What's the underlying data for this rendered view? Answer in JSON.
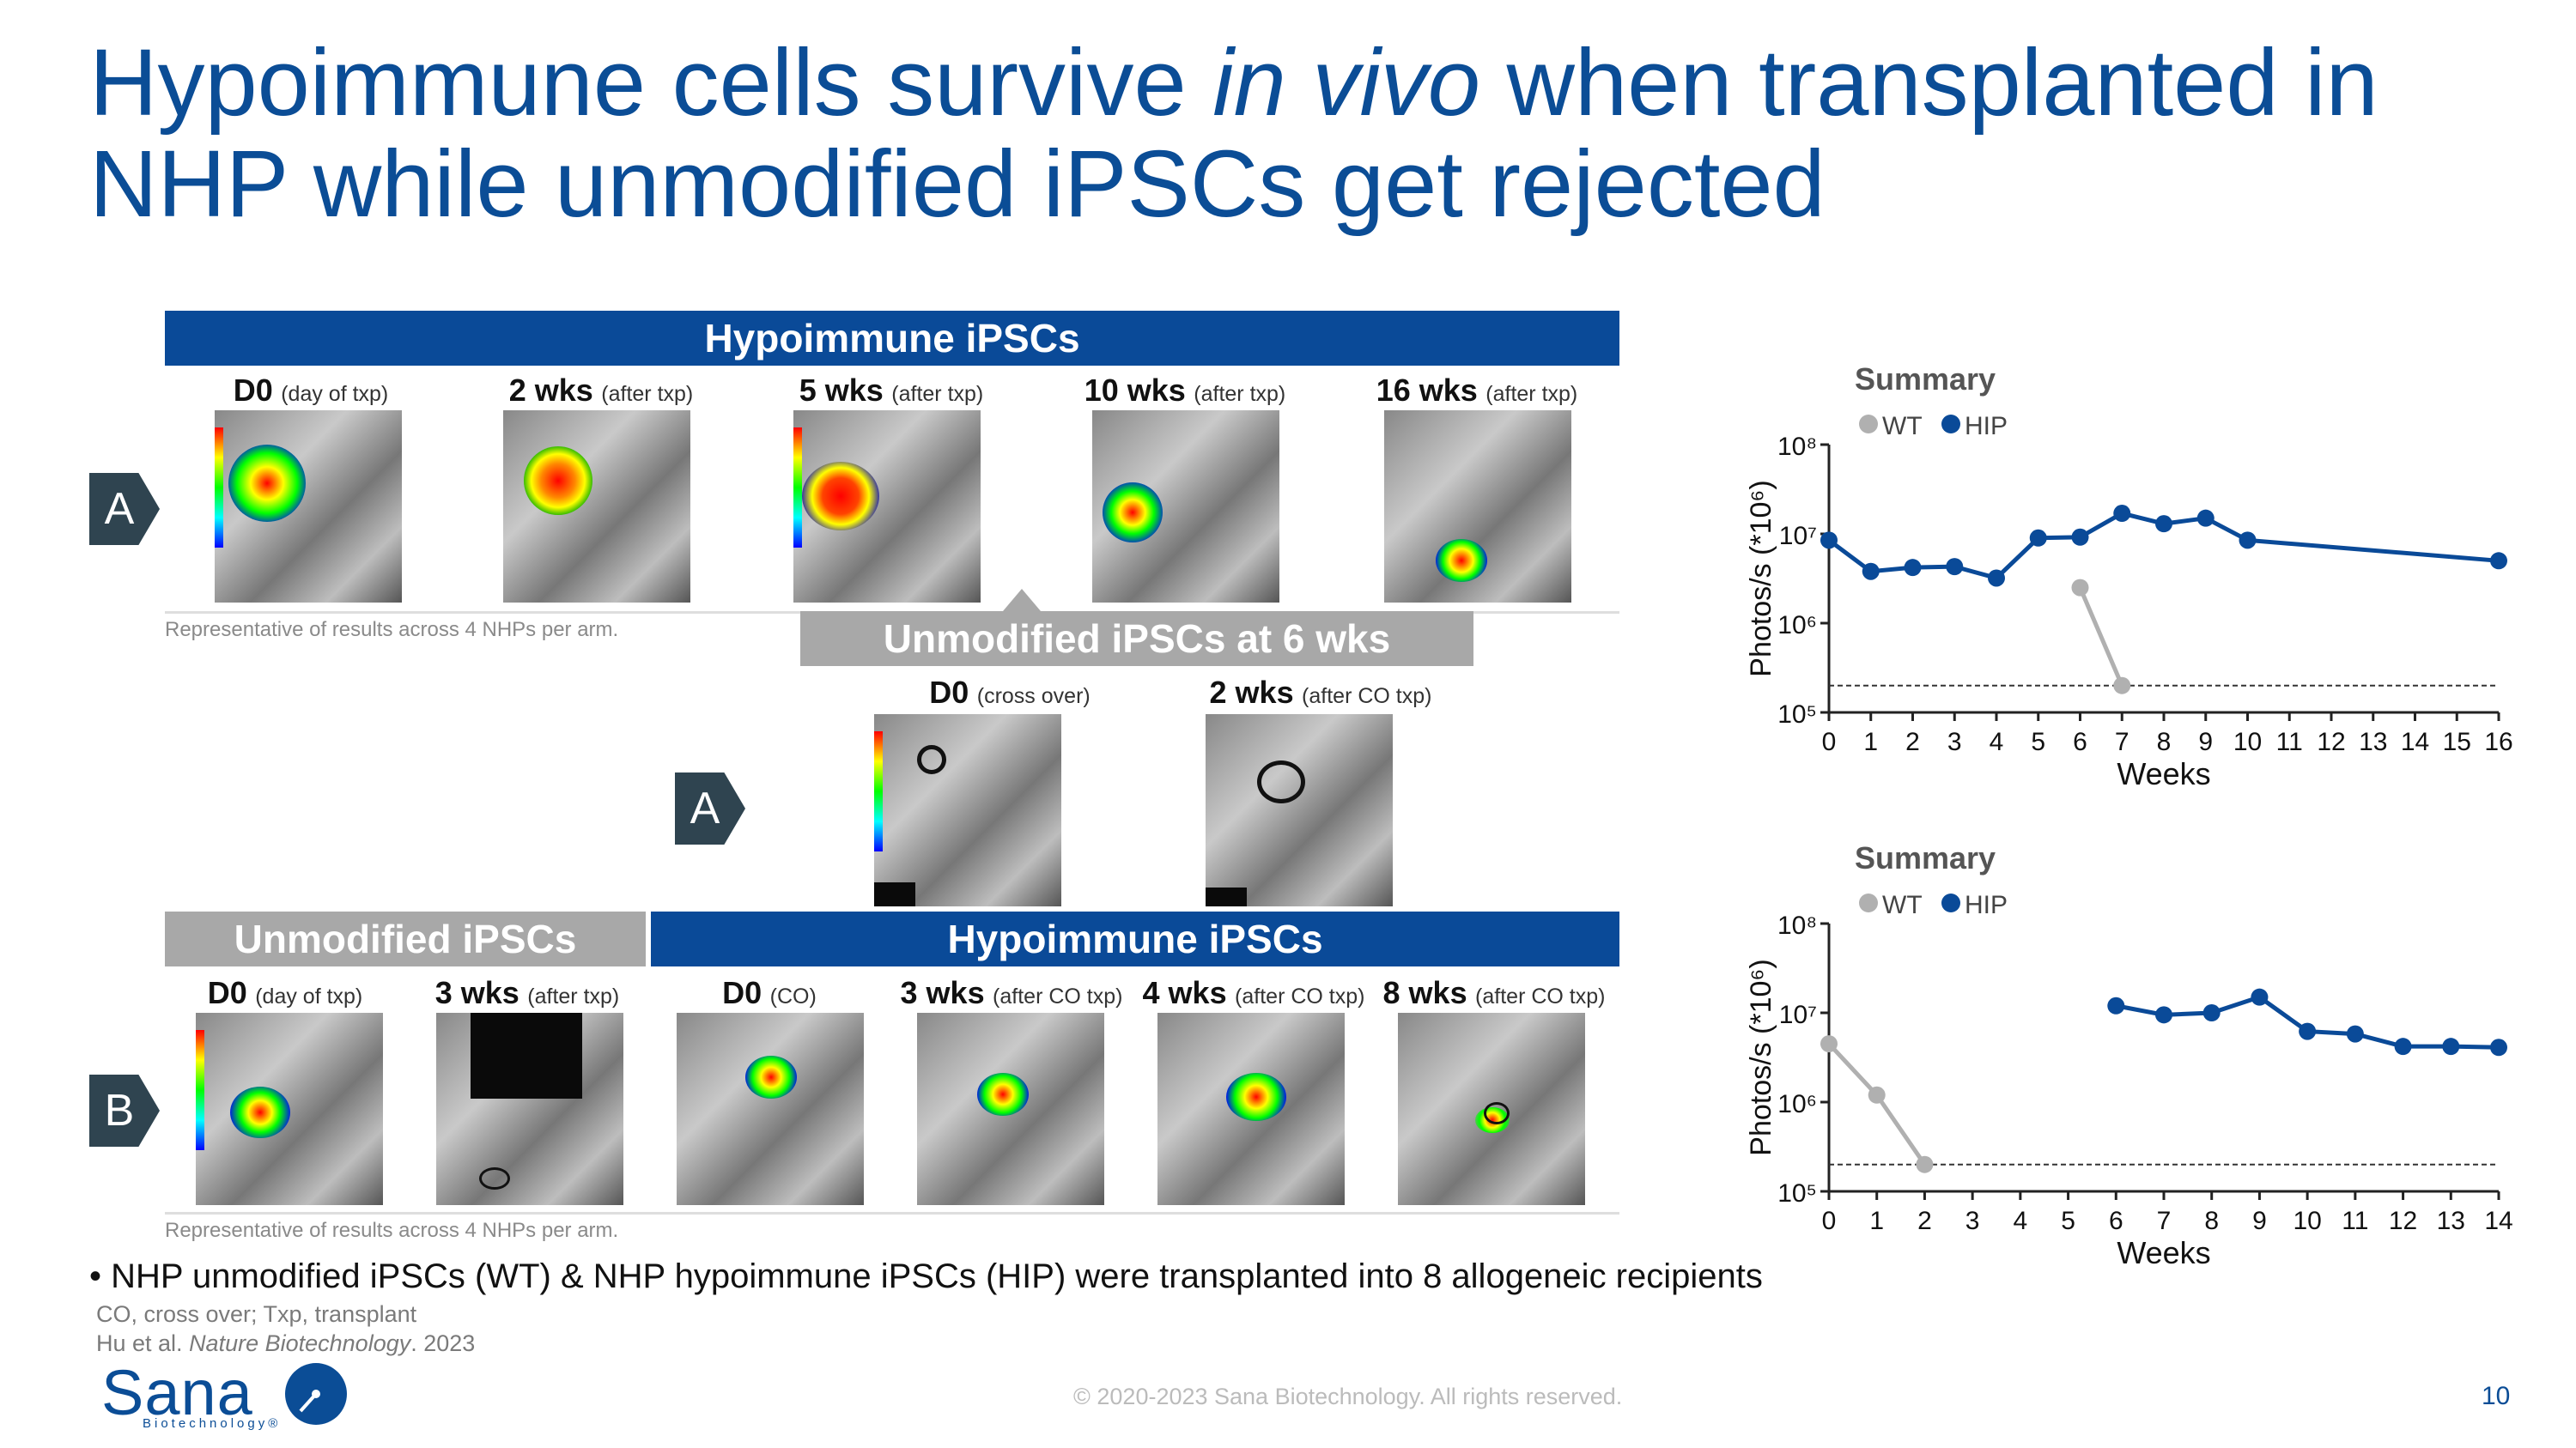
{
  "title": {
    "part1": "Hypoimmune cells survive ",
    "italic": "in vivo",
    "part2": " when transplanted in NHP while unmodified iPSCs get rejected"
  },
  "panelA": {
    "badge": "A",
    "header": "Hypoimmune iPSCs",
    "timepoints": [
      {
        "label": "D0",
        "sub": "(day of txp)"
      },
      {
        "label": "2 wks",
        "sub": "(after txp)"
      },
      {
        "label": "5 wks",
        "sub": "(after txp)"
      },
      {
        "label": "10 wks",
        "sub": "(after txp)"
      },
      {
        "label": "16 wks",
        "sub": "(after txp)"
      }
    ],
    "note": "Representative of results across 4 NHPs per arm."
  },
  "panelA2": {
    "badge": "A",
    "header": "Unmodified iPSCs at 6 wks",
    "timepoints": [
      {
        "label": "D0",
        "sub": "(cross over)"
      },
      {
        "label": "2 wks",
        "sub": "(after CO txp)"
      }
    ]
  },
  "panelB": {
    "badge": "B",
    "header_left": "Unmodified iPSCs",
    "header_right": "Hypoimmune iPSCs",
    "timepoints": [
      {
        "label": "D0",
        "sub": "(day of txp)"
      },
      {
        "label": "3 wks",
        "sub": "(after txp)"
      },
      {
        "label": "D0",
        "sub": "(CO)"
      },
      {
        "label": "3 wks",
        "sub": "(after CO txp)"
      },
      {
        "label": "4 wks",
        "sub": "(after CO txp)"
      },
      {
        "label": "8 wks",
        "sub": "(after CO txp)"
      }
    ],
    "note": "Representative of results across 4 NHPs per arm."
  },
  "chart_data": [
    {
      "type": "line",
      "title": "Summary",
      "xlabel": "Weeks",
      "ylabel": "Photos/s (*10⁶)",
      "yscale": "log",
      "ylim": [
        100000,
        100000000
      ],
      "yticks": [
        "10⁵",
        "10⁶",
        "10⁷",
        "10⁸"
      ],
      "xlim": [
        0,
        16
      ],
      "xticks": [
        "0",
        "1",
        "2",
        "3",
        "4",
        "5",
        "6",
        "7",
        "8",
        "9",
        "10",
        "11",
        "12",
        "13",
        "14",
        "15",
        "16"
      ],
      "threshold": 200000,
      "legend": [
        "WT",
        "HIP"
      ],
      "series": [
        {
          "name": "WT",
          "color": "#b0b0b0",
          "x": [
            6,
            7
          ],
          "values": [
            2500000,
            200000
          ]
        },
        {
          "name": "HIP",
          "color": "#0a4a98",
          "x": [
            0,
            1,
            2,
            3,
            4,
            5,
            6,
            7,
            8,
            9,
            10,
            16
          ],
          "values": [
            8500000,
            3800000,
            4200000,
            4300000,
            3200000,
            9000000,
            9200000,
            17000000,
            13000000,
            15000000,
            8500000,
            5000000
          ]
        }
      ]
    },
    {
      "type": "line",
      "title": "Summary",
      "xlabel": "Weeks",
      "ylabel": "Photos/s (*10⁶)",
      "yscale": "log",
      "ylim": [
        100000,
        100000000
      ],
      "yticks": [
        "10⁵",
        "10⁶",
        "10⁷",
        "10⁸"
      ],
      "xlim": [
        0,
        14
      ],
      "xticks": [
        "0",
        "1",
        "2",
        "3",
        "4",
        "5",
        "6",
        "7",
        "8",
        "9",
        "10",
        "11",
        "12",
        "13",
        "14"
      ],
      "threshold": 200000,
      "legend": [
        "WT",
        "HIP"
      ],
      "series": [
        {
          "name": "WT",
          "color": "#b0b0b0",
          "x": [
            0,
            1,
            2
          ],
          "values": [
            4500000,
            1200000,
            200000
          ]
        },
        {
          "name": "HIP",
          "color": "#0a4a98",
          "x": [
            6,
            7,
            8,
            9,
            10,
            11,
            12,
            13,
            14
          ],
          "values": [
            12000000,
            9500000,
            10000000,
            15000000,
            6200000,
            5800000,
            4200000,
            4200000,
            4100000
          ]
        }
      ]
    }
  ],
  "bullet": "• NHP unmodified iPSCs (WT) & NHP hypoimmune iPSCs (HIP) were transplanted into 8 allogeneic recipients",
  "abbrev": "CO, cross over; Txp, transplant",
  "citation": {
    "authors": "Hu et al. ",
    "journal": "Nature Biotechnology",
    "year": ". 2023"
  },
  "logo": {
    "name": "Sana",
    "sub": "Biotechnology®"
  },
  "footer": "© 2020-2023 Sana Biotechnology. All rights reserved.",
  "page_number": "10"
}
